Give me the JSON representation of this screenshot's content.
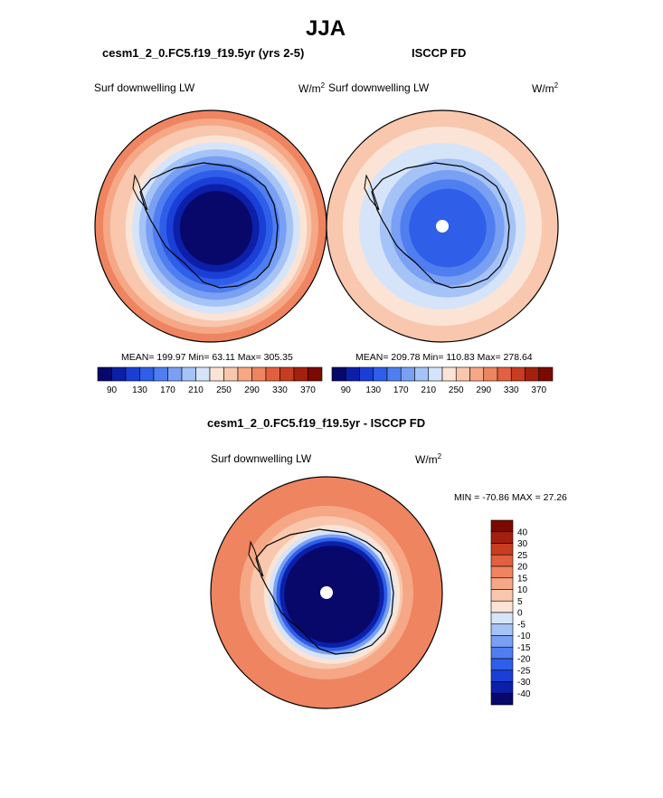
{
  "page": {
    "title": "JJA"
  },
  "panels": {
    "model": {
      "title": "cesm1_2_0.FC5.f19_f19.5yr (yrs 2-5)",
      "variable": "Surf downwelling LW",
      "units_base": "W/m",
      "units_exp": "2",
      "stats": "MEAN= 199.97  Min=  63.11  Max= 305.35"
    },
    "obs": {
      "title": "ISCCP FD",
      "variable": "Surf downwelling LW",
      "units_base": "W/m",
      "units_exp": "2",
      "stats": "MEAN= 209.78  Min= 110.83  Max= 278.64"
    },
    "diff": {
      "title": "cesm1_2_0.FC5.f19_f19.5yr - ISCCP FD",
      "variable": "Surf downwelling LW",
      "units_base": "W/m",
      "units_exp": "2",
      "stats": "MIN = -70.86 MAX =  27.26"
    }
  },
  "chart_data": [
    {
      "type": "heatmap",
      "projection": "south polar stereographic",
      "title": "cesm1_2_0.FC5.f19_f19.5yr (yrs 2-5)",
      "variable": "Surf downwelling LW",
      "units": "W/m2",
      "stats": {
        "mean": 199.97,
        "min": 63.11,
        "max": 305.35
      },
      "colorbar": {
        "orientation": "horizontal",
        "levels": [
          90,
          110,
          130,
          150,
          170,
          190,
          210,
          230,
          250,
          270,
          290,
          310,
          330,
          350,
          370
        ],
        "tick_labels": [
          "90",
          "130",
          "170",
          "210",
          "250",
          "290",
          "330",
          "370"
        ],
        "colors": [
          "#08086b",
          "#0c1fa8",
          "#1a3fd6",
          "#2f5ee8",
          "#4f7ef0",
          "#7aa0f3",
          "#a5c3f6",
          "#d6e4fa",
          "#fbe4d6",
          "#f8c7ad",
          "#f5a786",
          "#ef8460",
          "#e2603f",
          "#c83c22",
          "#a41f0d",
          "#7a0a00"
        ]
      },
      "rings": [
        {
          "level": 290,
          "color": "#ef8460"
        },
        {
          "level": 270,
          "color": "#f5a786"
        },
        {
          "level": 250,
          "color": "#f8c7ad"
        },
        {
          "level": 230,
          "color": "#fbe4d6"
        },
        {
          "level": 210,
          "color": "#d6e4fa"
        },
        {
          "level": 190,
          "color": "#a5c3f6"
        },
        {
          "level": 170,
          "color": "#7aa0f3"
        },
        {
          "level": 150,
          "color": "#4f7ef0"
        },
        {
          "level": 130,
          "color": "#2f5ee8"
        },
        {
          "level": 110,
          "color": "#1a3fd6"
        },
        {
          "level": 90,
          "color": "#0c1fa8"
        },
        {
          "level": 70,
          "color": "#08086b"
        }
      ],
      "pole_marker": false
    },
    {
      "type": "heatmap",
      "projection": "south polar stereographic",
      "title": "ISCCP FD",
      "variable": "Surf downwelling LW",
      "units": "W/m2",
      "stats": {
        "mean": 209.78,
        "min": 110.83,
        "max": 278.64
      },
      "colorbar": {
        "orientation": "horizontal",
        "levels": [
          90,
          110,
          130,
          150,
          170,
          190,
          210,
          230,
          250,
          270,
          290,
          310,
          330,
          350,
          370
        ],
        "tick_labels": [
          "90",
          "130",
          "170",
          "210",
          "250",
          "290",
          "330",
          "370"
        ],
        "colors": [
          "#08086b",
          "#0c1fa8",
          "#1a3fd6",
          "#2f5ee8",
          "#4f7ef0",
          "#7aa0f3",
          "#a5c3f6",
          "#d6e4fa",
          "#fbe4d6",
          "#f8c7ad",
          "#f5a786",
          "#ef8460",
          "#e2603f",
          "#c83c22",
          "#a41f0d",
          "#7a0a00"
        ]
      },
      "rings": [
        {
          "level": 250,
          "color": "#f8c7ad"
        },
        {
          "level": 230,
          "color": "#fbe4d6"
        },
        {
          "level": 210,
          "color": "#d6e4fa"
        },
        {
          "level": 190,
          "color": "#a5c3f6"
        },
        {
          "level": 170,
          "color": "#7aa0f3"
        },
        {
          "level": 150,
          "color": "#4f7ef0"
        },
        {
          "level": 130,
          "color": "#2f5ee8"
        }
      ],
      "pole_marker": true
    },
    {
      "type": "heatmap",
      "projection": "south polar stereographic",
      "title": "cesm1_2_0.FC5.f19_f19.5yr - ISCCP FD",
      "variable": "Surf downwelling LW",
      "units": "W/m2",
      "stats": {
        "min": -70.86,
        "max": 27.26
      },
      "colorbar": {
        "orientation": "vertical",
        "levels": [
          40,
          30,
          25,
          20,
          15,
          10,
          5,
          0,
          -5,
          -10,
          -15,
          -20,
          -25,
          -30,
          -40
        ],
        "tick_labels": [
          "40",
          "30",
          "25",
          "20",
          "15",
          "10",
          "5",
          "0",
          "-5",
          "-10",
          "-15",
          "-20",
          "-25",
          "-30",
          "-40"
        ],
        "colors": [
          "#7a0a00",
          "#a41f0d",
          "#c83c22",
          "#e2603f",
          "#ef8460",
          "#f5a786",
          "#f8c7ad",
          "#fbe4d6",
          "#d6e4fa",
          "#a5c3f6",
          "#7aa0f3",
          "#4f7ef0",
          "#2f5ee8",
          "#1a3fd6",
          "#0c1fa8",
          "#08086b"
        ]
      },
      "rings": [
        {
          "level": 15,
          "color": "#ef8460"
        },
        {
          "level": 10,
          "color": "#f5a786"
        },
        {
          "level": 5,
          "color": "#f8c7ad"
        },
        {
          "level": 0,
          "color": "#fbe4d6"
        },
        {
          "level": -5,
          "color": "#d6e4fa"
        },
        {
          "level": -15,
          "color": "#7aa0f3"
        },
        {
          "level": -25,
          "color": "#2f5ee8"
        },
        {
          "level": -35,
          "color": "#0c1fa8"
        },
        {
          "level": -45,
          "color": "#08086b"
        }
      ],
      "pole_marker": true
    }
  ]
}
